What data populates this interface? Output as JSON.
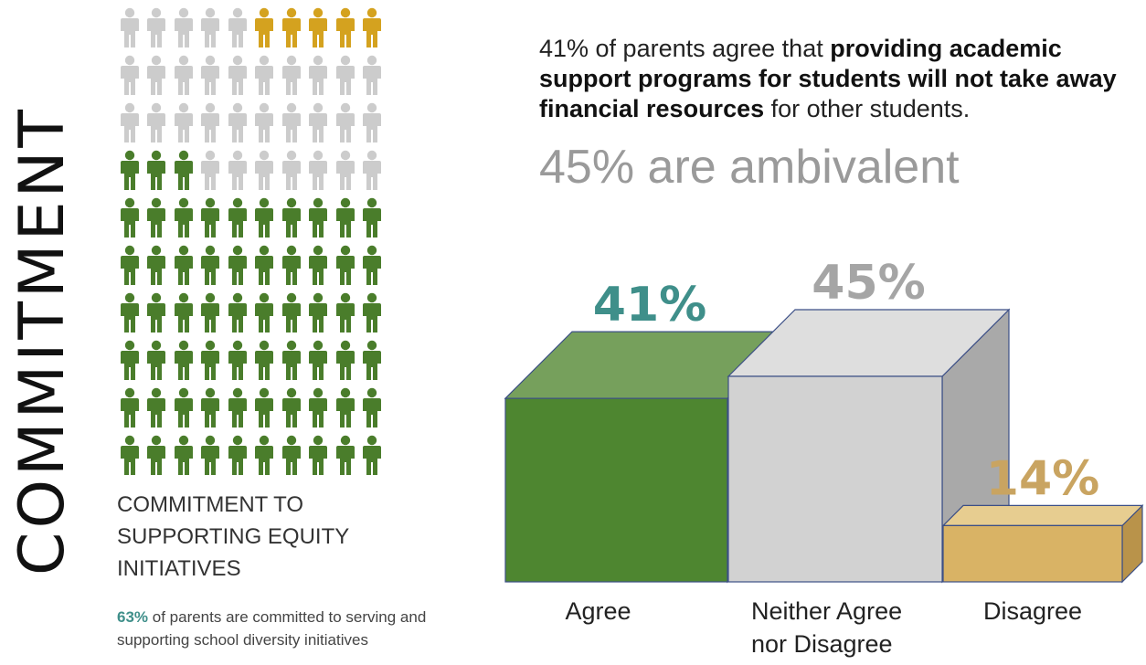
{
  "side_title": "COMMITMENT",
  "equity": {
    "title": "COMMITMENT TO SUPPORTING EQUITY INITIATIVES",
    "note_pct": "63%",
    "note_text": " of parents are committed to serving and supporting school diversity initiatives",
    "grid": {
      "total": 100,
      "green": 63,
      "gold": 5,
      "gray": 32
    }
  },
  "headline": {
    "lead": "41% of parents agree that ",
    "bold": "providing academic support programs for students will not take away financial resources",
    "tail": " for other students."
  },
  "subheadline": "45% are ambivalent",
  "colors": {
    "green": "#4a7d2b",
    "gold": "#d4a21f",
    "gray": "#cccccc",
    "agree": "#4e8630",
    "neutral": "#d2d2d2",
    "disagree": "#d9b365",
    "agree_label": "#3f8f8a",
    "neutral_label": "#a5a5a5",
    "disagree_label": "#c9a461"
  },
  "chart_data": {
    "type": "bar",
    "categories": [
      "Agree",
      "Neither Agree nor Disagree",
      "Disagree"
    ],
    "values": [
      41,
      45,
      14
    ],
    "data_labels": [
      "41%",
      "45%",
      "14%"
    ],
    "unit": "%"
  }
}
